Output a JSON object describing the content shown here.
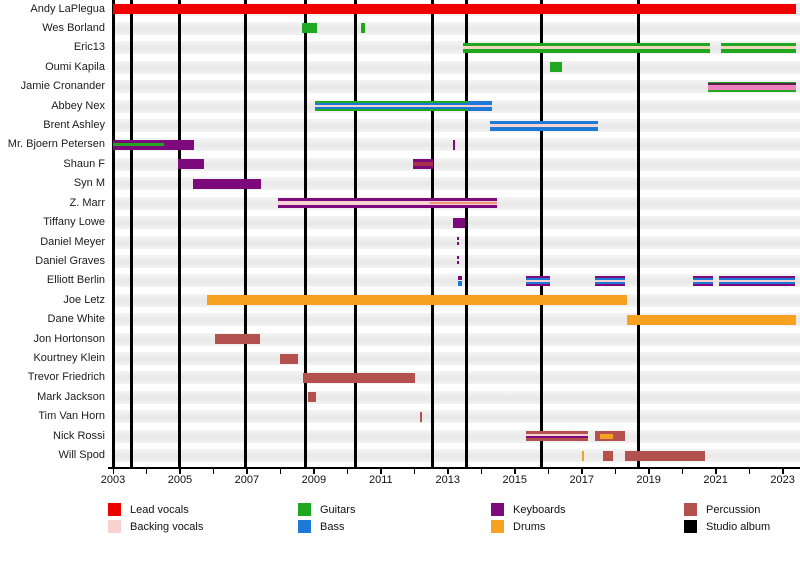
{
  "chart_data": {
    "type": "bar",
    "subtype": "band-membership-timeline-gantt",
    "title": "",
    "x_axis": {
      "min_year": 2003,
      "max_year": 2023.4,
      "tick_every_years": 1,
      "label_years": [
        2003,
        2005,
        2007,
        2009,
        2011,
        2013,
        2015,
        2017,
        2019,
        2021,
        2023
      ]
    },
    "colors": {
      "lead": "#ee0000",
      "backing": "#f8d2d0",
      "guitars": "#1fa81f",
      "bass": "#1e78d7",
      "keyboards": "#7c0a7c",
      "drums": "#f7a120",
      "percussion": "#b2514e",
      "album": "#000000",
      "salmon": "#ef9678",
      "maroon": "#a8304f",
      "dark_magenta": "#5c1f47",
      "pink": "#f080c0",
      "tan": "#eed7bb"
    },
    "legend": {
      "items": [
        {
          "label": "Lead vocals",
          "color": "lead"
        },
        {
          "label": "Backing vocals",
          "color": "backing"
        },
        {
          "label": "Guitars",
          "color": "guitars"
        },
        {
          "label": "Bass",
          "color": "bass"
        },
        {
          "label": "Keyboards",
          "color": "keyboards"
        },
        {
          "label": "Drums",
          "color": "drums"
        },
        {
          "label": "Percussion",
          "color": "percussion"
        },
        {
          "label": "Studio album",
          "color": "album"
        }
      ]
    },
    "album_lines_years": [
      2003.55,
      2005.0,
      2006.95,
      2008.75,
      2010.25,
      2012.55,
      2013.55,
      2015.8,
      2018.7
    ],
    "members": [
      {
        "name": "Andy LaPlegua",
        "bars": [
          {
            "from": 2003.0,
            "to": 2023.4,
            "color": "lead"
          }
        ]
      },
      {
        "name": "Wes Borland",
        "bars": [
          {
            "from": 2008.64,
            "to": 2009.09,
            "color": "guitars"
          },
          {
            "from": 2010.4,
            "to": 2010.52,
            "color": "guitars"
          }
        ]
      },
      {
        "name": "Eric13",
        "bars": [
          {
            "from": 2013.45,
            "to": 2020.82,
            "color": "guitars",
            "stripes": [
              {
                "color": "tan",
                "top": 0.35,
                "h": 0.3
              }
            ]
          },
          {
            "from": 2021.15,
            "to": 2023.4,
            "color": "guitars",
            "stripes": [
              {
                "color": "tan",
                "top": 0.35,
                "h": 0.3
              }
            ]
          }
        ]
      },
      {
        "name": "Oumi Kapila",
        "bars": [
          {
            "from": 2016.04,
            "to": 2016.4,
            "color": "guitars"
          }
        ]
      },
      {
        "name": "Jamie Cronander",
        "bars": [
          {
            "from": 2020.76,
            "to": 2023.4,
            "color": "guitars",
            "stripes": [
              {
                "color": "dark_magenta",
                "top": 0.17,
                "h": 0.2
              },
              {
                "color": "pink",
                "top": 0.38,
                "h": 0.42
              }
            ]
          }
        ]
      },
      {
        "name": "Abbey Nex",
        "bars": [
          {
            "from": 2009.03,
            "to": 2013.6,
            "color": "guitars",
            "stripes": [
              {
                "color": "bass",
                "top": 0.18,
                "h": 0.64
              },
              {
                "color": "backing",
                "top": 0.4,
                "h": 0.2
              }
            ]
          },
          {
            "from": 2013.6,
            "to": 2014.31,
            "color": "bass",
            "stripes": [
              {
                "color": "backing",
                "top": 0.4,
                "h": 0.2
              }
            ]
          }
        ]
      },
      {
        "name": "Brent Ashley",
        "bars": [
          {
            "from": 2014.25,
            "to": 2017.48,
            "color": "bass",
            "stripes": [
              {
                "color": "backing",
                "top": 0.37,
                "h": 0.26
              }
            ]
          }
        ]
      },
      {
        "name": "Mr. Bjoern Petersen",
        "bars": [
          {
            "from": 2003.0,
            "to": 2005.42,
            "color": "keyboards",
            "stripes": [
              {
                "color": "guitars",
                "top": 0.33,
                "h": 0.3,
                "from": 2003.0,
                "to": 2004.52
              }
            ]
          },
          {
            "from": 2013.15,
            "to": 2013.21,
            "color": "keyboards"
          }
        ]
      },
      {
        "name": "Shaun F",
        "bars": [
          {
            "from": 2004.95,
            "to": 2005.73,
            "color": "keyboards"
          },
          {
            "from": 2011.96,
            "to": 2012.55,
            "color": "keyboards",
            "stripes": [
              {
                "color": "maroon",
                "top": 0.3,
                "h": 0.4
              }
            ]
          }
        ]
      },
      {
        "name": "Syn M",
        "bars": [
          {
            "from": 2005.38,
            "to": 2007.41,
            "color": "keyboards"
          }
        ]
      },
      {
        "name": "Z. Marr",
        "bars": [
          {
            "from": 2007.93,
            "to": 2014.46,
            "color": "keyboards",
            "stripes": [
              {
                "color": "backing",
                "top": 0.28,
                "h": 0.44
              },
              {
                "color": "salmon",
                "top": 0.42,
                "h": 0.16,
                "from": 2012.46,
                "to": 2014.46
              }
            ]
          }
        ]
      },
      {
        "name": "Tiffany Lowe",
        "bars": [
          {
            "from": 2013.15,
            "to": 2013.51,
            "color": "keyboards"
          }
        ]
      },
      {
        "name": "Daniel Meyer",
        "bars": [
          {
            "from": 2013.27,
            "to": 2013.33,
            "color": "keyboards",
            "dashed": true
          }
        ]
      },
      {
        "name": "Daniel Graves",
        "bars": [
          {
            "from": 2013.27,
            "to": 2013.33,
            "color": "keyboards",
            "dashed": true
          }
        ]
      },
      {
        "name": "Elliott Berlin",
        "bars": [
          {
            "from": 2013.31,
            "to": 2013.43,
            "color": null,
            "stripes": [
              {
                "color": "keyboards",
                "top": 0.0,
                "h": 0.45
              },
              {
                "color": "bass",
                "top": 0.55,
                "h": 0.45
              }
            ]
          },
          {
            "from": 2015.33,
            "to": 2016.05,
            "color": "keyboards",
            "stripes": [
              {
                "color": "bass",
                "top": 0.2,
                "h": 0.6
              },
              {
                "color": "backing",
                "top": 0.4,
                "h": 0.2
              }
            ]
          },
          {
            "from": 2017.39,
            "to": 2018.28,
            "color": "keyboards",
            "stripes": [
              {
                "color": "bass",
                "top": 0.2,
                "h": 0.6
              },
              {
                "color": "backing",
                "top": 0.4,
                "h": 0.2
              }
            ]
          },
          {
            "from": 2020.31,
            "to": 2020.91,
            "color": "keyboards",
            "stripes": [
              {
                "color": "bass",
                "top": 0.2,
                "h": 0.6
              },
              {
                "color": "backing",
                "top": 0.4,
                "h": 0.2
              }
            ]
          },
          {
            "from": 2021.09,
            "to": 2023.36,
            "color": "keyboards",
            "stripes": [
              {
                "color": "bass",
                "top": 0.2,
                "h": 0.6
              },
              {
                "color": "backing",
                "top": 0.4,
                "h": 0.2
              }
            ]
          }
        ]
      },
      {
        "name": "Joe Letz",
        "bars": [
          {
            "from": 2005.8,
            "to": 2018.34,
            "color": "drums"
          }
        ]
      },
      {
        "name": "Dane White",
        "bars": [
          {
            "from": 2018.34,
            "to": 2023.4,
            "color": "drums"
          }
        ]
      },
      {
        "name": "Jon Hortonson",
        "bars": [
          {
            "from": 2006.04,
            "to": 2007.39,
            "color": "percussion"
          }
        ]
      },
      {
        "name": "Kourtney Klein",
        "bars": [
          {
            "from": 2007.99,
            "to": 2008.53,
            "color": "percussion"
          }
        ]
      },
      {
        "name": "Trevor Friedrich",
        "bars": [
          {
            "from": 2008.68,
            "to": 2012.01,
            "color": "percussion"
          }
        ]
      },
      {
        "name": "Mark Jackson",
        "bars": [
          {
            "from": 2008.83,
            "to": 2009.06,
            "color": "percussion"
          }
        ]
      },
      {
        "name": "Tim Van Horn",
        "bars": [
          {
            "from": 2012.16,
            "to": 2012.22,
            "color": "percussion"
          }
        ]
      },
      {
        "name": "Nick Rossi",
        "bars": [
          {
            "from": 2015.33,
            "to": 2017.19,
            "color": "percussion",
            "stripes": [
              {
                "color": "backing",
                "top": 0.25,
                "h": 0.45
              },
              {
                "color": "keyboards",
                "top": 0.48,
                "h": 0.22
              }
            ]
          },
          {
            "from": 2017.39,
            "to": 2018.28,
            "color": "percussion",
            "stripes": [
              {
                "color": "drums",
                "top": 0.25,
                "h": 0.5,
                "from": 2017.54,
                "to": 2017.94
              }
            ]
          }
        ]
      },
      {
        "name": "Will Spod",
        "bars": [
          {
            "from": 2017.0,
            "to": 2017.06,
            "color": "drums"
          },
          {
            "from": 2017.64,
            "to": 2017.94,
            "color": "percussion"
          },
          {
            "from": 2018.28,
            "to": 2020.67,
            "color": "percussion"
          }
        ]
      }
    ]
  }
}
